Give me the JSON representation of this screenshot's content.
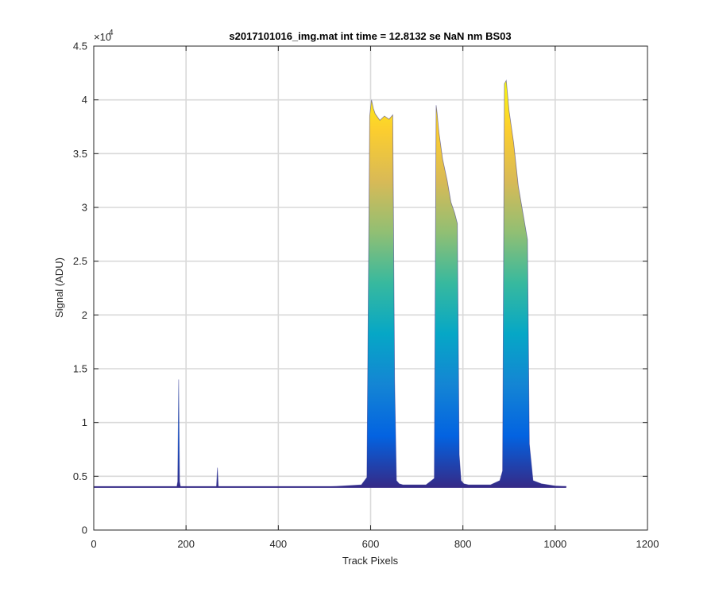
{
  "chart_data": {
    "type": "area",
    "title": "s2017101016_img.mat int time = 12.8132 se  NaN nm BS03",
    "xlabel": "Track Pixels",
    "ylabel": "Signal (ADU)",
    "y_exponent_label": "×10",
    "y_exponent_power": "4",
    "xlim": [
      0,
      1200
    ],
    "ylim": [
      0,
      45000
    ],
    "xticks": [
      0,
      200,
      400,
      600,
      800,
      1000,
      1200
    ],
    "xtick_labels": [
      "0",
      "200",
      "400",
      "600",
      "800",
      "1000",
      "1200"
    ],
    "yticks": [
      0,
      5000,
      10000,
      15000,
      20000,
      25000,
      30000,
      35000,
      40000,
      45000
    ],
    "ytick_labels": [
      "0",
      "0.5",
      "1",
      "1.5",
      "2",
      "2.5",
      "3",
      "3.5",
      "4",
      "4.5"
    ],
    "grid": true,
    "colormap": [
      "#352a87",
      "#0363e1",
      "#1485d4",
      "#06a7c6",
      "#38b99e",
      "#92bf73",
      "#d9ba56",
      "#fcce2e",
      "#f9fb0e"
    ],
    "baseline": 4000,
    "x_max": 1024,
    "series": [
      {
        "x": [
          0,
          180,
          182,
          184,
          186,
          188,
          266,
          268,
          270,
          272,
          274,
          500,
          580,
          592,
          598,
          602,
          606,
          610,
          620,
          630,
          640,
          648,
          652,
          656,
          662,
          670,
          720,
          738,
          742,
          744,
          748,
          756,
          766,
          774,
          782,
          788,
          792,
          796,
          802,
          812,
          860,
          880,
          886,
          890,
          894,
          900,
          910,
          920,
          930,
          936,
          940,
          944,
          952,
          970,
          1000,
          1024
        ],
        "y": [
          4000,
          4000,
          4500,
          14000,
          4500,
          4000,
          4000,
          5800,
          4000,
          4000,
          4000,
          4000,
          4200,
          4900,
          38500,
          40000,
          39200,
          38700,
          38100,
          38500,
          38200,
          38600,
          14000,
          4600,
          4300,
          4200,
          4200,
          4800,
          39500,
          38800,
          37000,
          34500,
          32500,
          30500,
          29500,
          28500,
          7000,
          4600,
          4300,
          4200,
          4200,
          4600,
          5500,
          41500,
          41800,
          39000,
          36000,
          32000,
          29500,
          28000,
          27000,
          8000,
          4600,
          4300,
          4100,
          4050
        ]
      }
    ]
  }
}
